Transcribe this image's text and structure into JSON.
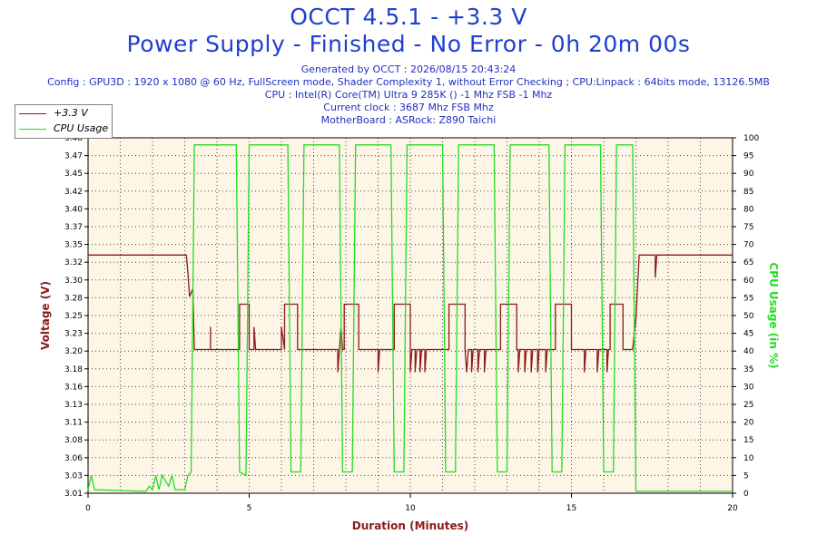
{
  "header": {
    "title_line1": "OCCT 4.5.1 - +3.3 V",
    "title_line2": "Power Supply - Finished - No Error - 0h 20m 00s",
    "info_lines": [
      "Generated by OCCT : 2026/08/15 20:43:24",
      "Config : GPU3D : 1920 x 1080 @ 60 Hz, FullScreen mode, Shader Complexity 1, without Error Checking ; CPU:Linpack : 64bits mode, 13126.5MB",
      "CPU : Intel(R) Core(TM) Ultra 9 285K () -1 Mhz FSB -1 Mhz",
      "Current clock : 3687 Mhz FSB  Mhz",
      "MotherBoard : ASRock: Z890 Taichi"
    ]
  },
  "colors": {
    "voltage": "#8b1a1a",
    "cpu": "#22dd22",
    "plot_bg": "#fdf6e6",
    "title": "#1f3fd0",
    "xlabel": "#8b1a1a"
  },
  "chart_data": {
    "type": "line",
    "xlabel": "Duration (Minutes)",
    "ylabel": "Voltage (V)",
    "y2label": "CPU Usage (in %)",
    "xlim": [
      0,
      20
    ],
    "ylim": [
      3.01,
      3.48
    ],
    "y2lim": [
      0,
      100
    ],
    "x_ticks": [
      "0",
      "5",
      "10",
      "15",
      "20"
    ],
    "y_ticks": [
      "3.01",
      "3.03",
      "3.06",
      "3.08",
      "3.11",
      "3.13",
      "3.16",
      "3.18",
      "3.20",
      "3.23",
      "3.25",
      "3.28",
      "3.30",
      "3.32",
      "3.35",
      "3.37",
      "3.40",
      "3.42",
      "3.45",
      "3.47",
      "3.48"
    ],
    "y2_ticks": [
      "0",
      "5",
      "10",
      "15",
      "20",
      "25",
      "30",
      "35",
      "40",
      "45",
      "50",
      "55",
      "60",
      "65",
      "70",
      "75",
      "80",
      "85",
      "90",
      "95",
      "100"
    ],
    "grid": true,
    "legend_position": "top-left",
    "series": [
      {
        "name": "+3.3 V",
        "axis": "left",
        "points": [
          [
            0,
            3.325
          ],
          [
            3.05,
            3.325
          ],
          [
            3.1,
            3.3
          ],
          [
            3.15,
            3.27
          ],
          [
            3.25,
            3.28
          ],
          [
            3.3,
            3.2
          ],
          [
            3.8,
            3.2
          ],
          [
            3.8,
            3.23
          ],
          [
            3.8,
            3.2
          ],
          [
            4.7,
            3.2
          ],
          [
            4.7,
            3.26
          ],
          [
            5.0,
            3.26
          ],
          [
            5.0,
            3.2
          ],
          [
            5.15,
            3.2
          ],
          [
            5.15,
            3.23
          ],
          [
            5.2,
            3.2
          ],
          [
            6.0,
            3.2
          ],
          [
            6.0,
            3.23
          ],
          [
            6.1,
            3.2
          ],
          [
            6.1,
            3.26
          ],
          [
            6.5,
            3.26
          ],
          [
            6.5,
            3.2
          ],
          [
            7.75,
            3.2
          ],
          [
            7.75,
            3.17
          ],
          [
            7.8,
            3.2
          ],
          [
            7.85,
            3.23
          ],
          [
            7.9,
            3.2
          ],
          [
            7.95,
            3.2
          ],
          [
            7.95,
            3.26
          ],
          [
            8.4,
            3.26
          ],
          [
            8.4,
            3.2
          ],
          [
            9.0,
            3.2
          ],
          [
            9.0,
            3.17
          ],
          [
            9.05,
            3.2
          ],
          [
            9.5,
            3.2
          ],
          [
            9.5,
            3.26
          ],
          [
            10.0,
            3.26
          ],
          [
            10.0,
            3.2
          ],
          [
            10.0,
            3.17
          ],
          [
            10.05,
            3.2
          ],
          [
            10.15,
            3.2
          ],
          [
            10.15,
            3.17
          ],
          [
            10.2,
            3.2
          ],
          [
            10.3,
            3.2
          ],
          [
            10.3,
            3.17
          ],
          [
            10.35,
            3.2
          ],
          [
            10.45,
            3.2
          ],
          [
            10.45,
            3.17
          ],
          [
            10.5,
            3.2
          ],
          [
            11.2,
            3.2
          ],
          [
            11.2,
            3.26
          ],
          [
            11.7,
            3.26
          ],
          [
            11.7,
            3.2
          ],
          [
            11.75,
            3.17
          ],
          [
            11.8,
            3.2
          ],
          [
            11.9,
            3.2
          ],
          [
            11.9,
            3.17
          ],
          [
            11.95,
            3.2
          ],
          [
            12.1,
            3.2
          ],
          [
            12.1,
            3.17
          ],
          [
            12.15,
            3.2
          ],
          [
            12.3,
            3.2
          ],
          [
            12.3,
            3.17
          ],
          [
            12.35,
            3.2
          ],
          [
            12.8,
            3.2
          ],
          [
            12.8,
            3.26
          ],
          [
            13.3,
            3.26
          ],
          [
            13.3,
            3.2
          ],
          [
            13.35,
            3.2
          ],
          [
            13.35,
            3.17
          ],
          [
            13.4,
            3.2
          ],
          [
            13.55,
            3.2
          ],
          [
            13.55,
            3.17
          ],
          [
            13.6,
            3.2
          ],
          [
            13.75,
            3.2
          ],
          [
            13.75,
            3.17
          ],
          [
            13.8,
            3.2
          ],
          [
            13.95,
            3.2
          ],
          [
            13.95,
            3.17
          ],
          [
            14.0,
            3.2
          ],
          [
            14.2,
            3.2
          ],
          [
            14.2,
            3.17
          ],
          [
            14.25,
            3.2
          ],
          [
            14.5,
            3.2
          ],
          [
            14.5,
            3.26
          ],
          [
            15.0,
            3.26
          ],
          [
            15.0,
            3.2
          ],
          [
            15.4,
            3.2
          ],
          [
            15.4,
            3.17
          ],
          [
            15.45,
            3.2
          ],
          [
            15.8,
            3.2
          ],
          [
            15.8,
            3.17
          ],
          [
            15.85,
            3.2
          ],
          [
            16.1,
            3.2
          ],
          [
            16.1,
            3.17
          ],
          [
            16.15,
            3.2
          ],
          [
            16.2,
            3.2
          ],
          [
            16.2,
            3.26
          ],
          [
            16.6,
            3.26
          ],
          [
            16.6,
            3.2
          ],
          [
            16.9,
            3.2
          ],
          [
            17.0,
            3.24
          ],
          [
            17.1,
            3.325
          ],
          [
            17.6,
            3.325
          ],
          [
            17.6,
            3.295
          ],
          [
            17.65,
            3.325
          ],
          [
            20,
            3.325
          ]
        ]
      },
      {
        "name": "CPU Usage",
        "axis": "right",
        "points": [
          [
            0,
            1
          ],
          [
            0.1,
            5
          ],
          [
            0.2,
            1
          ],
          [
            1.8,
            0.5
          ],
          [
            1.9,
            2
          ],
          [
            2.0,
            1
          ],
          [
            2.1,
            5
          ],
          [
            2.2,
            1
          ],
          [
            2.3,
            5
          ],
          [
            2.5,
            2
          ],
          [
            2.6,
            5
          ],
          [
            2.7,
            1
          ],
          [
            3.0,
            1
          ],
          [
            3.1,
            5
          ],
          [
            3.2,
            6
          ],
          [
            3.3,
            98
          ],
          [
            4.6,
            98
          ],
          [
            4.7,
            6
          ],
          [
            4.9,
            5
          ],
          [
            5.0,
            98
          ],
          [
            6.2,
            98
          ],
          [
            6.3,
            6
          ],
          [
            6.6,
            6
          ],
          [
            6.7,
            98
          ],
          [
            7.8,
            98
          ],
          [
            7.9,
            6
          ],
          [
            8.2,
            6
          ],
          [
            8.3,
            98
          ],
          [
            9.4,
            98
          ],
          [
            9.5,
            6
          ],
          [
            9.8,
            6
          ],
          [
            9.9,
            98
          ],
          [
            11.0,
            98
          ],
          [
            11.1,
            6
          ],
          [
            11.4,
            6
          ],
          [
            11.5,
            98
          ],
          [
            12.6,
            98
          ],
          [
            12.7,
            6
          ],
          [
            13.0,
            6
          ],
          [
            13.1,
            98
          ],
          [
            14.3,
            98
          ],
          [
            14.4,
            6
          ],
          [
            14.7,
            6
          ],
          [
            14.8,
            98
          ],
          [
            15.9,
            98
          ],
          [
            16.0,
            6
          ],
          [
            16.3,
            6
          ],
          [
            16.4,
            98
          ],
          [
            16.9,
            98
          ],
          [
            17.0,
            0.5
          ],
          [
            20,
            0.5
          ]
        ]
      }
    ]
  }
}
